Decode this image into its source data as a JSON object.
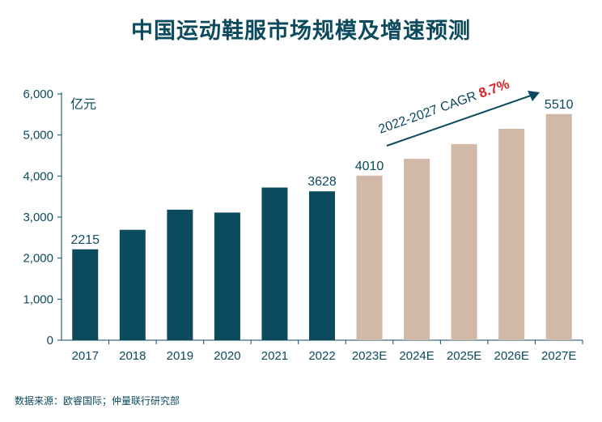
{
  "title": "中国运动鞋服市场规模及增速预测",
  "source": "数据来源：欧睿国际；仲量联行研究部",
  "colors": {
    "actual": "#0c4a5e",
    "forecast": "#d2b8a6",
    "text": "#0c4a5e",
    "highlight": "#d9252a"
  },
  "chart_data": {
    "type": "bar",
    "title": "中国运动鞋服市场规模及增速预测",
    "ylabel": "亿元",
    "xlabel": "",
    "ylim": [
      0,
      6000
    ],
    "yticks": [
      "0",
      "1,000",
      "2,000",
      "3,000",
      "4,000",
      "5,000",
      "6,000"
    ],
    "categories": [
      "2017",
      "2018",
      "2019",
      "2020",
      "2021",
      "2022",
      "2023E",
      "2024E",
      "2025E",
      "2026E",
      "2027E"
    ],
    "values": [
      2215,
      2690,
      3180,
      3110,
      3720,
      3628,
      4010,
      4420,
      4780,
      5150,
      5510
    ],
    "forecast_from_index": 6,
    "data_labels": [
      {
        "index": 0,
        "text": "2215"
      },
      {
        "index": 5,
        "text": "3628"
      },
      {
        "index": 6,
        "text": "4010"
      },
      {
        "index": 10,
        "text": "5510"
      }
    ],
    "annotation": {
      "text": "2022-2027 CAGR ",
      "value": "8.7%"
    },
    "grid": false
  }
}
